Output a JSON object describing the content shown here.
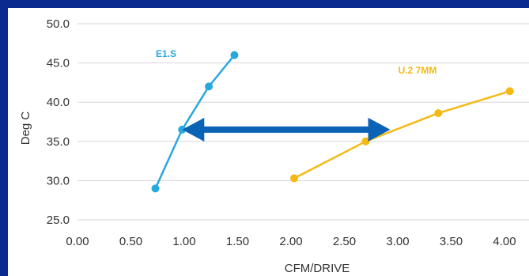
{
  "colors": {
    "background": "#0a2a8f",
    "panel": "#ffffff",
    "grid": "#d6d6d6",
    "arrow": "#0b63b6"
  },
  "chart_data": {
    "type": "line",
    "xlabel": "CFM/DRIVE",
    "ylabel": "Deg C",
    "xlim": [
      0.0,
      4.0
    ],
    "ylim": [
      25.0,
      50.0
    ],
    "x_ticks": [
      "0.00",
      "0.50",
      "1.00",
      "1.50",
      "2.00",
      "2.50",
      "3.00",
      "3.50",
      "4.00"
    ],
    "y_ticks": [
      "25.0",
      "30.0",
      "35.0",
      "40.0",
      "45.0",
      "50.0"
    ],
    "grid": "horizontal",
    "series": [
      {
        "name": "E1.S",
        "color": "#29a8e0",
        "points": [
          [
            0.73,
            29.0
          ],
          [
            0.98,
            36.5
          ],
          [
            1.23,
            42.0
          ],
          [
            1.47,
            46.0
          ]
        ]
      },
      {
        "name": "U.2 7MM",
        "color": "#f5b916",
        "points": [
          [
            2.03,
            30.3
          ],
          [
            2.7,
            35.0
          ],
          [
            3.38,
            38.6
          ],
          [
            4.05,
            41.4
          ]
        ]
      }
    ],
    "annotation": {
      "type": "double-arrow",
      "from": [
        0.98,
        36.5
      ],
      "to": [
        2.93,
        36.5
      ]
    }
  }
}
